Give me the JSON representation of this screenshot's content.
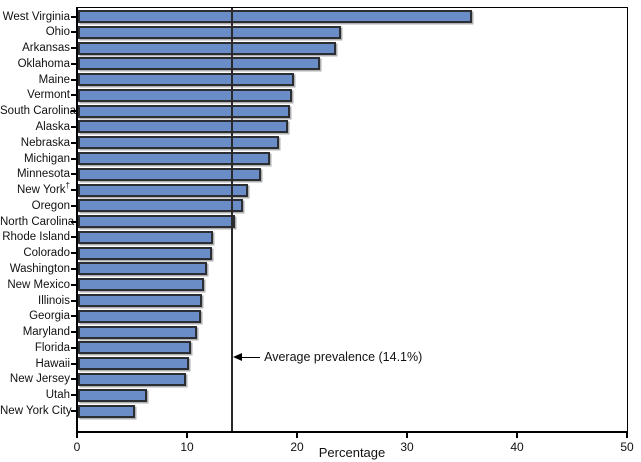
{
  "chart_data": {
    "type": "bar",
    "orientation": "horizontal",
    "title": "",
    "xlabel": "Percentage",
    "xlim": [
      0,
      50
    ],
    "xticks": [
      0,
      10,
      20,
      30,
      40,
      50
    ],
    "grid": false,
    "legend_position": "none",
    "categories": [
      "West Virginia",
      "Ohio",
      "Arkansas",
      "Oklahoma",
      "Maine",
      "Vermont",
      "South Carolina",
      "Alaska",
      "Nebraska",
      "Michigan",
      "Minnesota",
      "New York†",
      "Oregon",
      "North Carolina",
      "Rhode Island",
      "Colorado",
      "Washington",
      "New Mexico",
      "Illinois",
      "Georgia",
      "Maryland",
      "Florida",
      "Hawaii",
      "New Jersey",
      "Utah",
      "New York City"
    ],
    "values": [
      35.9,
      24.0,
      23.5,
      22.1,
      19.7,
      19.5,
      19.4,
      19.2,
      18.4,
      17.5,
      16.7,
      15.5,
      15.1,
      14.4,
      12.4,
      12.3,
      11.8,
      11.5,
      11.4,
      11.3,
      10.9,
      10.4,
      10.2,
      9.9,
      6.4,
      5.3
    ],
    "average_line": {
      "value": 14.1,
      "label": "Average prevalence (14.1%)"
    },
    "colors": {
      "bar_fill": "#6a8cc7",
      "bar_border": "#2b2e33",
      "bar_shadow": "#b0b0b0",
      "axis": "#000000"
    }
  }
}
